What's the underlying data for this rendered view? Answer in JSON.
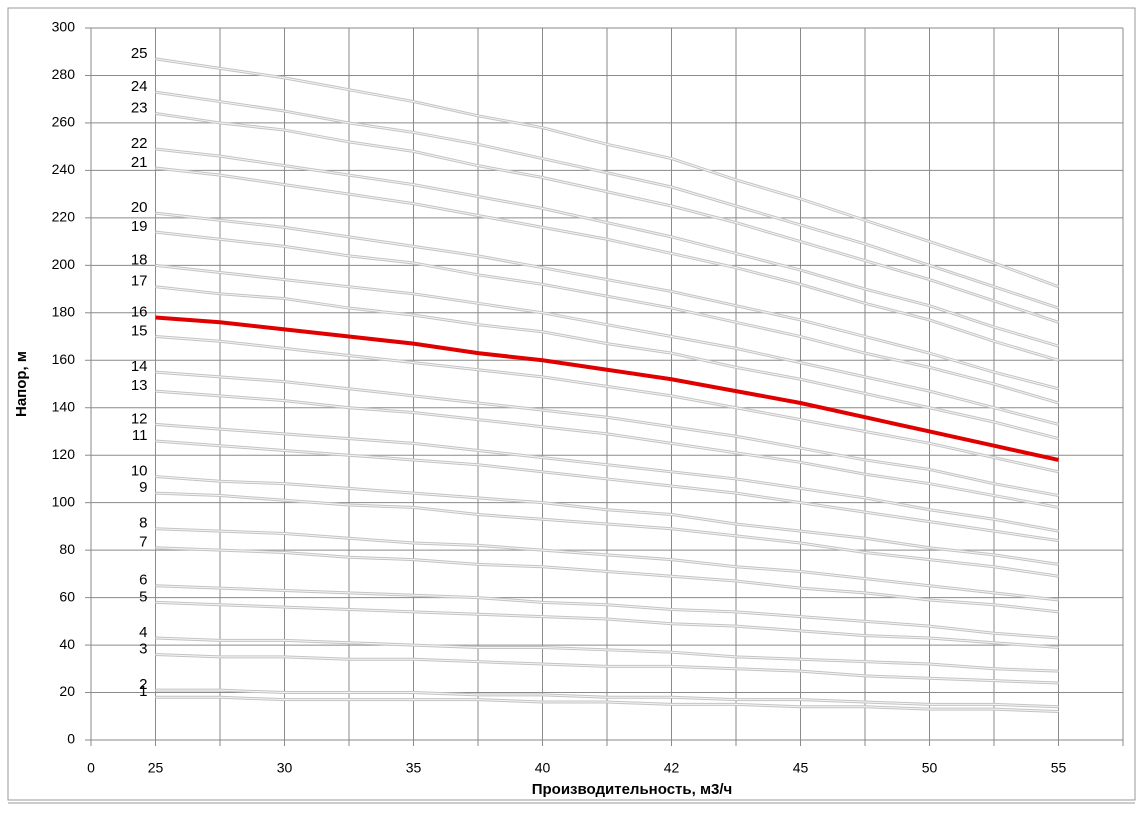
{
  "chart_data": {
    "type": "line",
    "x_label": "Производительность, м3/ч",
    "y_label": "Напор, м",
    "categories": [
      "0",
      "25",
      null,
      "30",
      null,
      "35",
      null,
      "40",
      null,
      "42",
      null,
      "45",
      null,
      "50",
      null,
      "55",
      null
    ],
    "ylim": [
      0,
      300
    ],
    "yticks": [
      0,
      20,
      40,
      60,
      80,
      100,
      120,
      140,
      160,
      180,
      200,
      220,
      240,
      260,
      280,
      300
    ],
    "grid": true,
    "series": [
      {
        "name": "1",
        "color": "#c4c4c4",
        "values": [
          null,
          18,
          18,
          17,
          17,
          17,
          17,
          16,
          16,
          15,
          15,
          14,
          14,
          13,
          13,
          12,
          null
        ]
      },
      {
        "name": "2",
        "color": "#c4c4c4",
        "values": [
          null,
          21,
          21,
          20,
          20,
          20,
          19,
          19,
          18,
          18,
          17,
          17,
          16,
          15,
          15,
          14,
          null
        ]
      },
      {
        "name": "3",
        "color": "#c4c4c4",
        "values": [
          null,
          36,
          35,
          35,
          34,
          34,
          33,
          32,
          31,
          31,
          30,
          29,
          27,
          26,
          25,
          24,
          null
        ]
      },
      {
        "name": "4",
        "color": "#c4c4c4",
        "values": [
          null,
          43,
          42,
          42,
          41,
          40,
          39,
          39,
          38,
          37,
          35,
          34,
          33,
          32,
          30,
          29,
          null
        ]
      },
      {
        "name": "5",
        "color": "#c4c4c4",
        "values": [
          null,
          58,
          57,
          56,
          55,
          54,
          53,
          52,
          51,
          49,
          48,
          46,
          44,
          43,
          41,
          39,
          null
        ]
      },
      {
        "name": "6",
        "color": "#c4c4c4",
        "values": [
          null,
          65,
          64,
          63,
          62,
          61,
          60,
          58,
          57,
          55,
          54,
          52,
          50,
          48,
          45,
          43,
          null
        ]
      },
      {
        "name": "7",
        "color": "#c4c4c4",
        "values": [
          null,
          81,
          80,
          79,
          77,
          76,
          74,
          73,
          71,
          69,
          67,
          64,
          62,
          59,
          57,
          54,
          null
        ]
      },
      {
        "name": "8",
        "color": "#c4c4c4",
        "values": [
          null,
          89,
          88,
          87,
          85,
          83,
          82,
          80,
          78,
          76,
          73,
          71,
          68,
          65,
          62,
          59,
          null
        ]
      },
      {
        "name": "9",
        "color": "#c4c4c4",
        "values": [
          null,
          104,
          103,
          101,
          99,
          98,
          95,
          93,
          91,
          89,
          86,
          83,
          79,
          76,
          73,
          69,
          null
        ]
      },
      {
        "name": "10",
        "color": "#c4c4c4",
        "values": [
          null,
          111,
          109,
          108,
          106,
          104,
          102,
          100,
          97,
          95,
          91,
          88,
          85,
          81,
          78,
          74,
          null
        ]
      },
      {
        "name": "11",
        "color": "#c4c4c4",
        "values": [
          null,
          126,
          124,
          122,
          120,
          118,
          116,
          113,
          110,
          107,
          104,
          100,
          96,
          92,
          88,
          84,
          null
        ]
      },
      {
        "name": "12",
        "color": "#c4c4c4",
        "values": [
          null,
          133,
          131,
          129,
          127,
          125,
          122,
          119,
          116,
          113,
          110,
          106,
          102,
          97,
          93,
          88,
          null
        ]
      },
      {
        "name": "13",
        "color": "#c4c4c4",
        "values": [
          null,
          147,
          145,
          143,
          140,
          138,
          135,
          132,
          129,
          125,
          121,
          117,
          112,
          108,
          103,
          98,
          null
        ]
      },
      {
        "name": "14",
        "color": "#c4c4c4",
        "values": [
          null,
          155,
          153,
          151,
          148,
          145,
          142,
          139,
          136,
          132,
          128,
          123,
          118,
          114,
          108,
          103,
          null
        ]
      },
      {
        "name": "15",
        "color": "#c4c4c4",
        "values": [
          null,
          170,
          168,
          165,
          162,
          159,
          156,
          153,
          149,
          145,
          140,
          135,
          130,
          125,
          119,
          113,
          null
        ]
      },
      {
        "name": "16",
        "color": "#e00000",
        "values": [
          null,
          178,
          176,
          173,
          170,
          167,
          163,
          160,
          156,
          152,
          147,
          142,
          136,
          130,
          124,
          118,
          null
        ]
      },
      {
        "name": "17",
        "color": "#c4c4c4",
        "values": [
          null,
          191,
          188,
          186,
          182,
          179,
          175,
          172,
          167,
          163,
          157,
          152,
          146,
          140,
          134,
          127,
          null
        ]
      },
      {
        "name": "18",
        "color": "#c4c4c4",
        "values": [
          null,
          200,
          197,
          194,
          191,
          188,
          184,
          180,
          175,
          170,
          165,
          159,
          153,
          147,
          140,
          133,
          null
        ]
      },
      {
        "name": "19",
        "color": "#c4c4c4",
        "values": [
          null,
          214,
          211,
          208,
          204,
          201,
          196,
          192,
          187,
          182,
          176,
          170,
          163,
          157,
          150,
          142,
          null
        ]
      },
      {
        "name": "20",
        "color": "#c4c4c4",
        "values": [
          null,
          222,
          219,
          216,
          212,
          208,
          204,
          199,
          194,
          189,
          183,
          177,
          170,
          163,
          155,
          148,
          null
        ]
      },
      {
        "name": "21",
        "color": "#c4c4c4",
        "values": [
          null,
          241,
          238,
          234,
          230,
          226,
          221,
          216,
          211,
          205,
          199,
          192,
          184,
          177,
          168,
          160,
          null
        ]
      },
      {
        "name": "22",
        "color": "#c4c4c4",
        "values": [
          null,
          249,
          246,
          242,
          238,
          234,
          229,
          224,
          218,
          212,
          205,
          198,
          190,
          183,
          174,
          166,
          null
        ]
      },
      {
        "name": "23",
        "color": "#c4c4c4",
        "values": [
          null,
          264,
          260,
          257,
          252,
          248,
          242,
          237,
          231,
          225,
          218,
          210,
          202,
          194,
          185,
          176,
          null
        ]
      },
      {
        "name": "24",
        "color": "#c4c4c4",
        "values": [
          null,
          273,
          269,
          265,
          260,
          256,
          251,
          245,
          239,
          233,
          225,
          217,
          209,
          200,
          191,
          182,
          null
        ]
      },
      {
        "name": "25",
        "color": "#c4c4c4",
        "values": [
          null,
          287,
          283,
          279,
          274,
          269,
          263,
          258,
          251,
          245,
          236,
          228,
          219,
          210,
          201,
          191,
          null
        ]
      }
    ]
  }
}
